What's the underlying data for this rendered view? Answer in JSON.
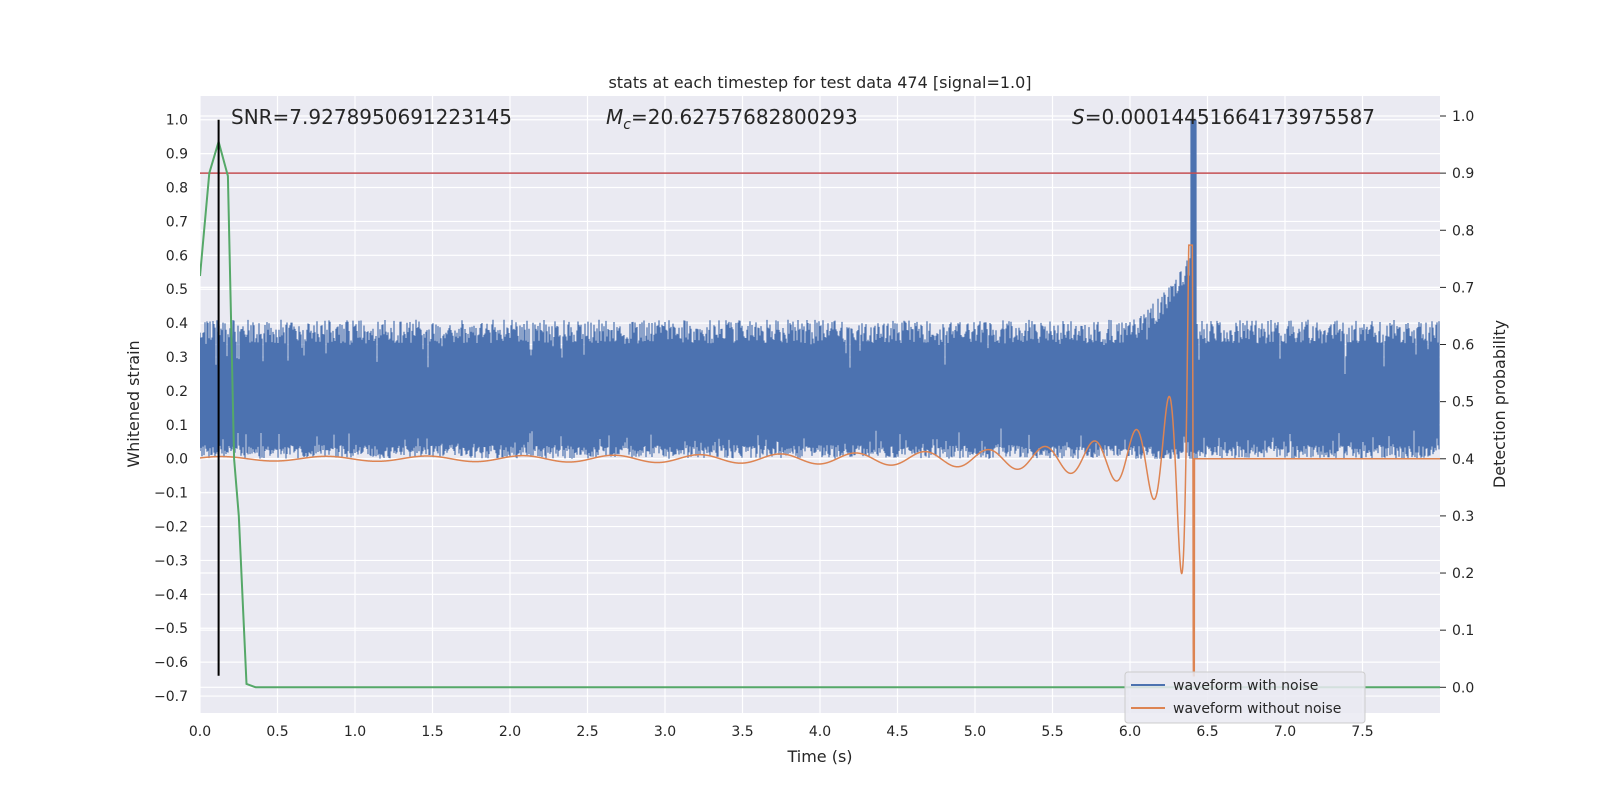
{
  "chart_data": {
    "type": "line",
    "title": "stats at each timestep for test data 474 [signal=1.0]",
    "xlabel": "Time (s)",
    "ylabel_left": "Whitened strain",
    "ylabel_right": "Detection probability",
    "xlim": [
      0.0,
      8.0
    ],
    "ylim_left": [
      -0.75,
      1.07
    ],
    "ylim_right": [
      -0.045,
      1.035
    ],
    "x_ticks": [
      "0.0",
      "0.5",
      "1.0",
      "1.5",
      "2.0",
      "2.5",
      "3.0",
      "3.5",
      "4.0",
      "4.5",
      "5.0",
      "5.5",
      "6.0",
      "6.5",
      "7.0",
      "7.5"
    ],
    "y_ticks_left": [
      "1.0",
      "0.9",
      "0.8",
      "0.7",
      "0.6",
      "0.5",
      "0.4",
      "0.3",
      "0.2",
      "0.1",
      "0.0",
      "−0.1",
      "−0.2",
      "−0.3",
      "−0.4",
      "−0.5",
      "−0.6",
      "−0.7"
    ],
    "y_ticks_right": [
      "1.0",
      "0.9",
      "0.8",
      "0.7",
      "0.6",
      "0.5",
      "0.4",
      "0.3",
      "0.2",
      "0.1",
      "0.0"
    ],
    "grid": true,
    "legend_position": "bottom-right",
    "annotations": {
      "snr": "SNR=7.9278950691223145",
      "mc_symbol": "M",
      "mc_sub": "c",
      "mc_value": "=20.62757682800293",
      "s_symbol": "S",
      "s_value": "=0.00014451664173975587"
    },
    "series": [
      {
        "name": "waveform with noise",
        "color": "#4c72b0",
        "axis": "left",
        "noise_band": [
          0.0,
          0.4
        ],
        "peak_time": 6.41,
        "peak_value": 1.0
      },
      {
        "name": "waveform without noise",
        "color": "#dd8452",
        "axis": "left",
        "merger_time": 6.41,
        "min_value": -0.64,
        "max_value": 0.63
      },
      {
        "color": "#55a868",
        "axis": "right",
        "x": [
          0.0,
          0.06,
          0.12,
          0.18,
          0.22,
          0.25,
          0.3,
          0.36,
          0.42,
          8.0
        ],
        "values": [
          0.72,
          0.9,
          0.955,
          0.895,
          0.4,
          0.3,
          0.006,
          0.0,
          0.0,
          0.0
        ]
      }
    ],
    "reference_lines": [
      {
        "orientation": "horizontal",
        "axis": "right",
        "value": 0.9,
        "color": "#c44e52"
      },
      {
        "orientation": "vertical",
        "value": 0.12,
        "color": "#000000",
        "ymin": -0.64,
        "ymax": 1.0
      }
    ]
  }
}
